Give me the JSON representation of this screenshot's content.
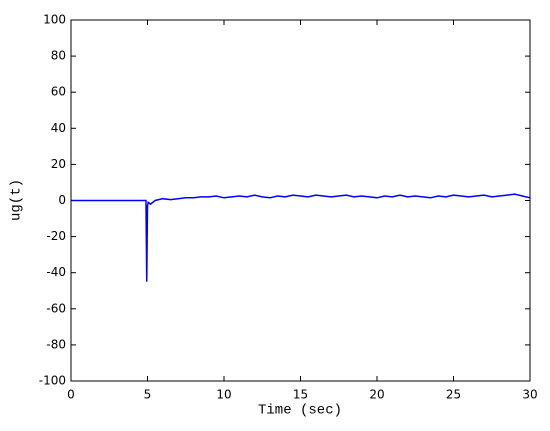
{
  "chart_data": {
    "type": "line",
    "xlabel": "Time (sec)",
    "ylabel": "ug(t)",
    "x": [
      0,
      4.9,
      4.95,
      5.0,
      5.05,
      5.2,
      5.5,
      6,
      6.5,
      7,
      7.5,
      8,
      8.5,
      9,
      9.5,
      10,
      10.5,
      11,
      11.5,
      12,
      12.5,
      13,
      13.5,
      14,
      14.5,
      15,
      15.5,
      16,
      16.5,
      17,
      17.5,
      18,
      18.5,
      19,
      19.5,
      20,
      20.5,
      21,
      21.5,
      22,
      22.5,
      23,
      23.5,
      24,
      24.5,
      25,
      25.5,
      26,
      26.5,
      27,
      27.5,
      28,
      28.5,
      29,
      29.5,
      30
    ],
    "series": [
      {
        "color": "#0000ff",
        "values": [
          0,
          0,
          -45,
          -3,
          -1,
          -2,
          0,
          1,
          0.5,
          1,
          1.5,
          1.5,
          2,
          2,
          2.5,
          1.5,
          2,
          2.5,
          2,
          3,
          2,
          1.5,
          2.5,
          2,
          3,
          2.5,
          2,
          3,
          2.5,
          2,
          2.5,
          3,
          2,
          2.5,
          2,
          1.5,
          2.5,
          2,
          3,
          2,
          2.5,
          2,
          1.5,
          2.5,
          2,
          3,
          2.5,
          2,
          2.5,
          3,
          2,
          2.5,
          3,
          3.5,
          2.5,
          1.5
        ]
      }
    ],
    "xlim": [
      0,
      30
    ],
    "xticks": [
      0,
      5,
      10,
      15,
      20,
      25,
      30
    ],
    "ylim": [
      -100,
      100
    ],
    "yticks": [
      -100,
      -80,
      -60,
      -40,
      -20,
      0,
      20,
      40,
      60,
      80,
      100
    ],
    "grid": false
  }
}
